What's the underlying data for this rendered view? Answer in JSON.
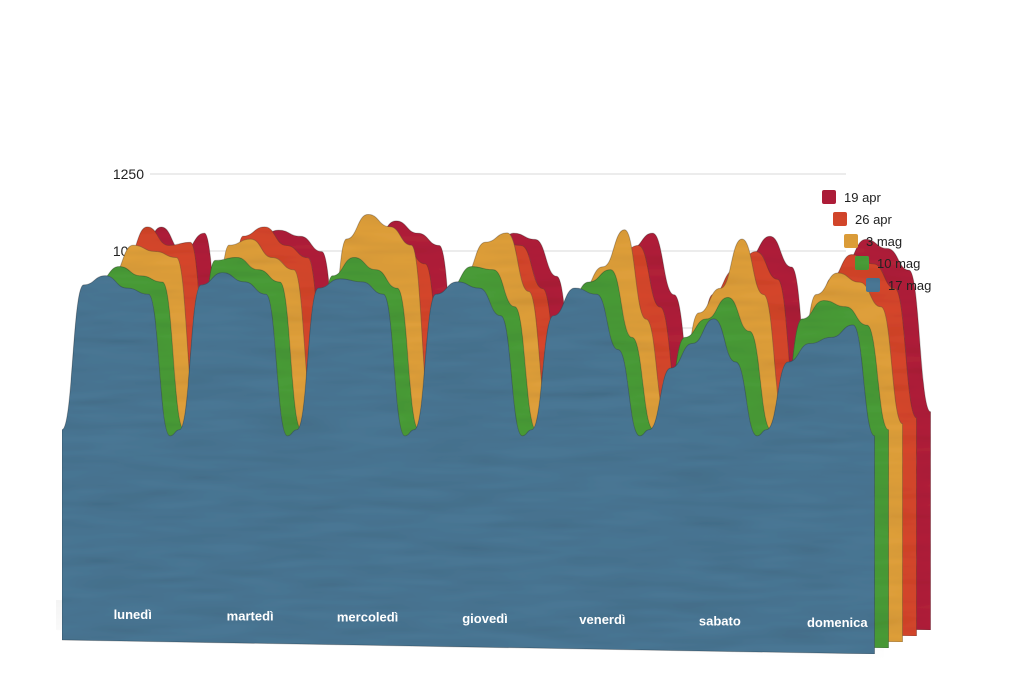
{
  "chart_data": {
    "type": "area",
    "y_ticks": [
      1000,
      1250
    ],
    "ylim": [
      0,
      1250
    ],
    "grid": true,
    "legend_placement": "top-right",
    "categories": [
      "lunedì",
      "martedì",
      "mercoledì",
      "giovedì",
      "venerdì",
      "sabato",
      "domenica"
    ],
    "series": [
      {
        "name": "19 apr",
        "color": "#b3203a",
        "values": [
          [
            900,
            1000,
            920,
            980
          ],
          [
            960,
            990,
            970,
            920
          ],
          [
            960,
            1020,
            980,
            940
          ],
          [
            900,
            980,
            960,
            840
          ],
          [
            860,
            930,
            980,
            780
          ],
          [
            820,
            900,
            970,
            870
          ],
          [
            880,
            960,
            930,
            860
          ]
        ]
      },
      {
        "name": "26 apr",
        "color": "#d9472b",
        "values": [
          [
            910,
            1020,
            960,
            970
          ],
          [
            990,
            1020,
            960,
            920
          ],
          [
            970,
            1000,
            960,
            900
          ],
          [
            880,
            970,
            960,
            820
          ],
          [
            850,
            920,
            960,
            760
          ],
          [
            800,
            880,
            940,
            850
          ],
          [
            850,
            930,
            900,
            820
          ]
        ]
      },
      {
        "name": "3 mag",
        "color": "#e3a23b",
        "values": [
          [
            880,
            980,
            960,
            940
          ],
          [
            980,
            1000,
            940,
            900
          ],
          [
            1000,
            1080,
            1040,
            980
          ],
          [
            880,
            990,
            1020,
            830
          ],
          [
            830,
            910,
            1030,
            740
          ],
          [
            760,
            840,
            1000,
            820
          ],
          [
            820,
            890,
            860,
            780
          ]
        ]
      },
      {
        "name": "10 mag",
        "color": "#4a9e38",
        "values": [
          [
            880,
            930,
            900,
            880
          ],
          [
            950,
            960,
            920,
            880
          ],
          [
            900,
            960,
            920,
            860
          ],
          [
            860,
            930,
            920,
            800
          ],
          [
            800,
            880,
            920,
            700
          ],
          [
            700,
            760,
            830,
            720
          ],
          [
            760,
            820,
            800,
            740
          ]
        ]
      },
      {
        "name": "17 mag",
        "color": "#4a7896",
        "values": [
          [
            890,
            920,
            880,
            860
          ],
          [
            890,
            930,
            900,
            860
          ],
          [
            880,
            910,
            900,
            860
          ],
          [
            860,
            900,
            880,
            790
          ],
          [
            790,
            880,
            860,
            680
          ],
          [
            620,
            700,
            780,
            640
          ],
          [
            640,
            700,
            720,
            760
          ]
        ]
      }
    ]
  }
}
